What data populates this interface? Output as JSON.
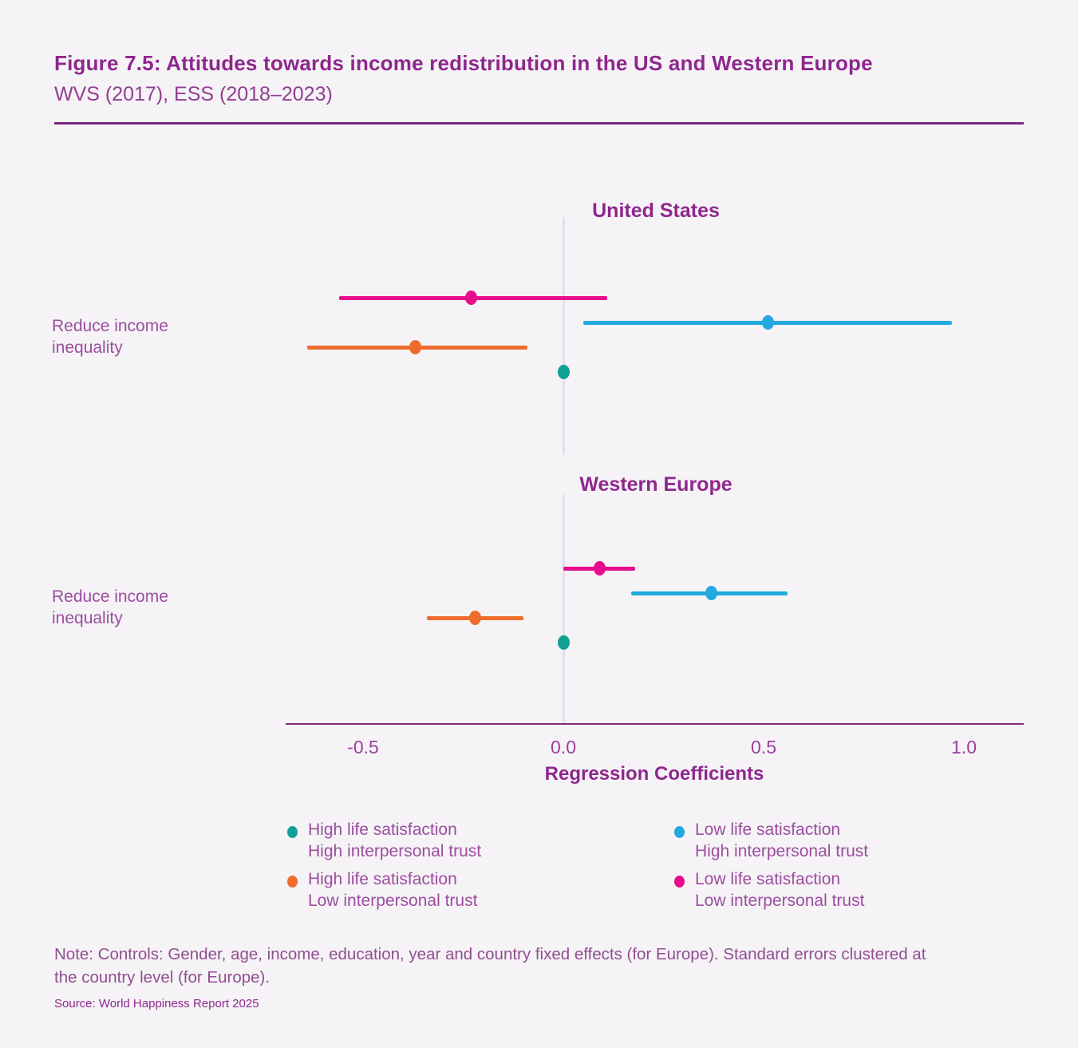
{
  "header": {
    "title": "Figure 7.5: Attitudes towards income redistribution in the US and Western Europe",
    "subtitle": "WVS (2017), ESS (2018–2023)"
  },
  "colors": {
    "background": "#f5f3f6",
    "heading_purple": "#8e278d",
    "text_purple": "#9c4d9f",
    "axis_line": "#7c2b7e",
    "zero_line": "#e4dfe8",
    "teal": "#0fa294",
    "blue": "#22a9e0",
    "orange": "#ee6d2d",
    "pink": "#e80d8c"
  },
  "chart_data": {
    "type": "scatter",
    "subtype": "dot-and-whisker coefficient plot",
    "xlabel": "Regression Coefficients",
    "x_ticks": [
      -0.5,
      0.0,
      0.5,
      1.0
    ],
    "x_tick_labels": [
      "-0.5",
      "0.0",
      "0.5",
      "1.0"
    ],
    "xlim": [
      -0.69,
      1.15
    ],
    "grid": false,
    "category_lines": [
      "Reduce income",
      "inequality"
    ],
    "panels": [
      {
        "title": "United States",
        "category": "Reduce income inequality",
        "series": [
          {
            "name": "Low life satisfaction, Low interpersonal trust",
            "color_key": "pink",
            "estimate": -0.23,
            "ci_low": -0.56,
            "ci_high": 0.11
          },
          {
            "name": "Low life satisfaction, High interpersonal trust",
            "color_key": "blue",
            "estimate": 0.51,
            "ci_low": 0.05,
            "ci_high": 0.97
          },
          {
            "name": "High life satisfaction, Low interpersonal trust",
            "color_key": "orange",
            "estimate": -0.37,
            "ci_low": -0.64,
            "ci_high": -0.09
          },
          {
            "name": "High life satisfaction, High interpersonal trust",
            "color_key": "teal",
            "estimate": 0.0,
            "ci_low": 0.0,
            "ci_high": 0.0
          }
        ]
      },
      {
        "title": "Western Europe",
        "category": "Reduce income inequality",
        "series": [
          {
            "name": "Low life satisfaction, Low interpersonal trust",
            "color_key": "pink",
            "estimate": 0.09,
            "ci_low": 0.0,
            "ci_high": 0.18
          },
          {
            "name": "Low life satisfaction, High interpersonal trust",
            "color_key": "blue",
            "estimate": 0.37,
            "ci_low": 0.17,
            "ci_high": 0.56
          },
          {
            "name": "High life satisfaction, Low interpersonal trust",
            "color_key": "orange",
            "estimate": -0.22,
            "ci_low": -0.34,
            "ci_high": -0.1
          },
          {
            "name": "High life satisfaction, High interpersonal trust",
            "color_key": "teal",
            "estimate": 0.0,
            "ci_low": 0.0,
            "ci_high": 0.0
          }
        ]
      }
    ],
    "legend_position": "bottom"
  },
  "legend": {
    "items": [
      {
        "color_key": "teal",
        "line1": "High life satisfaction",
        "line2": "High interpersonal trust"
      },
      {
        "color_key": "blue",
        "line1": "Low life satisfaction",
        "line2": "High interpersonal trust"
      },
      {
        "color_key": "orange",
        "line1": "High life satisfaction",
        "line2": "Low interpersonal trust"
      },
      {
        "color_key": "pink",
        "line1": "Low life satisfaction",
        "line2": "Low interpersonal trust"
      }
    ]
  },
  "notes": {
    "note": "Note: Controls: Gender, age, income, education, year and country fixed effects (for Europe). Standard errors clustered at the country level (for Europe).",
    "source": "Source: World Happiness Report 2025"
  }
}
